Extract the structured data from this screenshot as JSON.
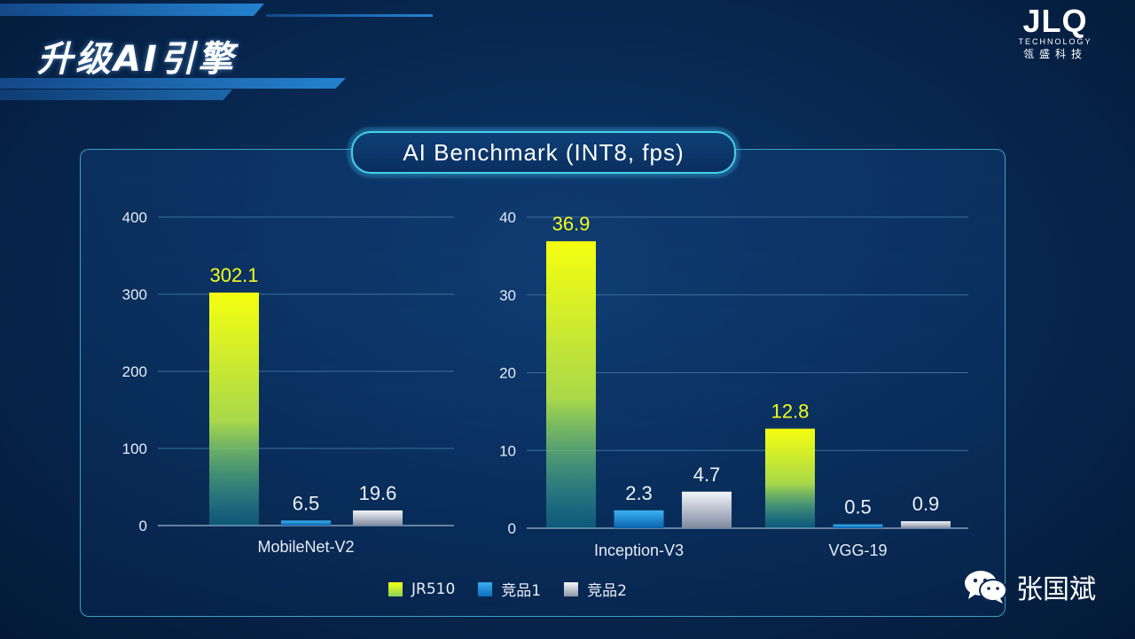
{
  "slide": {
    "title": "升级AI引擎"
  },
  "logo": {
    "main": "JLQ",
    "sub": "TECHNOLOGY",
    "cn": "瓴盛科技"
  },
  "chart_title": "AI Benchmark (INT8, fps)",
  "legend": [
    "JR510",
    "竞品1",
    "竞品2"
  ],
  "colors": {
    "jr510": "#f2fb14",
    "comp1": "#1c8fdc",
    "comp2": "#c9ced8",
    "accent": "#46d0e8"
  },
  "watermark": {
    "name": "张国斌",
    "icon": "wechat-icon"
  },
  "chart_data": [
    {
      "type": "bar",
      "categories": [
        "MobileNet-V2"
      ],
      "series": [
        {
          "name": "JR510",
          "values": [
            302.1
          ]
        },
        {
          "name": "竞品1",
          "values": [
            6.5
          ]
        },
        {
          "name": "竞品2",
          "values": [
            19.6
          ]
        }
      ],
      "yticks": [
        "0",
        "100",
        "200",
        "300",
        "400"
      ],
      "ylim": [
        0,
        400
      ],
      "grid": true
    },
    {
      "type": "bar",
      "categories": [
        "Inception-V3",
        "VGG-19"
      ],
      "series": [
        {
          "name": "JR510",
          "values": [
            36.9,
            12.8
          ]
        },
        {
          "name": "竞品1",
          "values": [
            2.3,
            0.5
          ]
        },
        {
          "name": "竞品2",
          "values": [
            4.7,
            0.9
          ]
        }
      ],
      "yticks": [
        "0",
        "10",
        "20",
        "30",
        "40"
      ],
      "ylim": [
        0,
        40
      ],
      "grid": true
    }
  ]
}
